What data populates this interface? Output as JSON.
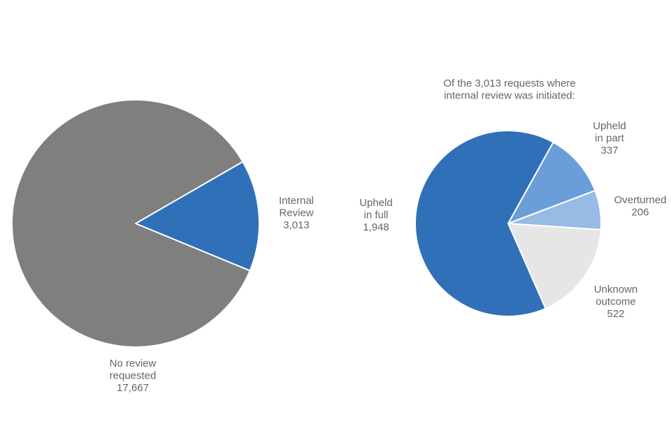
{
  "chart_data": [
    {
      "type": "pie",
      "title": "",
      "slices": [
        {
          "label": [
            "Internal",
            "Review",
            "3,013"
          ],
          "value": 3013,
          "color": "#3070b8"
        },
        {
          "label": [
            "No review",
            "requested",
            "17,667"
          ],
          "value": 17667,
          "color": "#7f7f7f"
        }
      ],
      "start_angle_deg": 60,
      "direction": "clockwise"
    },
    {
      "type": "pie",
      "title": [
        "Of the 3,013 requests where",
        "internal review was initiated:"
      ],
      "slices": [
        {
          "label": [
            "Upheld",
            "in part",
            "337"
          ],
          "value": 337,
          "color": "#6b9ed9"
        },
        {
          "label": [
            "Overturned",
            "206"
          ],
          "value": 206,
          "color": "#98bbe5"
        },
        {
          "label": [
            "Unknown",
            "outcome",
            "522"
          ],
          "value": 522,
          "color": "#e6e6e6"
        },
        {
          "label": [
            "Upheld",
            "in full",
            "1,948"
          ],
          "value": 1948,
          "color": "#3070b8"
        }
      ],
      "start_angle_deg": 29,
      "direction": "clockwise"
    }
  ]
}
